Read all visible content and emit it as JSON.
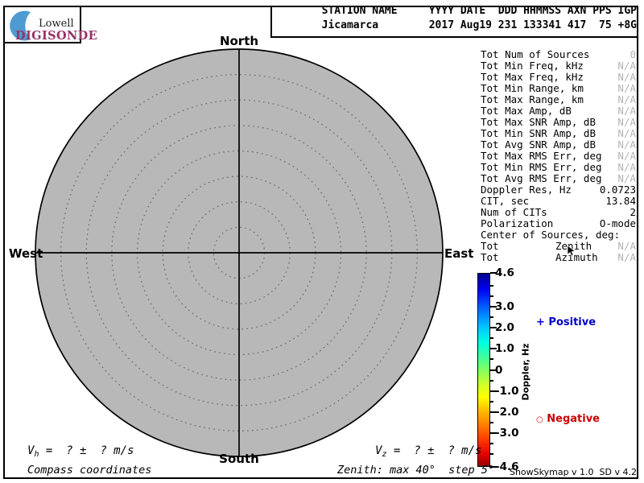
{
  "logo": {
    "top": "Lowell",
    "bottom": "DIGISONDE",
    "arc_color": "#4d9bd1",
    "brand_color": "#993366"
  },
  "header": {
    "line1": "STATION NAME     YYYY DATE  DDD HHMMSS AXN PPS IGP",
    "line2": "Jicamarca        2017 Aug19 231 133341 417  75 +8G",
    "station": {
      "name": "Jicamarca",
      "year": "2017",
      "date": "Aug19",
      "ddd": "231",
      "time": "133341",
      "axn": "417",
      "pps": "75",
      "igp": "+8G"
    }
  },
  "compass": {
    "north": "North",
    "south": "South",
    "east": "East",
    "west": "West",
    "max_zenith_deg": 40,
    "step_deg": 5,
    "fill_color": "#b8b8b8",
    "ring_color": "#6a6a6a"
  },
  "stats": {
    "rows": [
      {
        "label": "Tot Num of Sources",
        "value": "0",
        "dim": true
      },
      {
        "label": "Tot Min Freq, kHz",
        "value": "N/A",
        "dim": true
      },
      {
        "label": "Tot Max Freq, kHz",
        "value": "N/A",
        "dim": true
      },
      {
        "label": "Tot Min Range, km",
        "value": "N/A",
        "dim": true
      },
      {
        "label": "Tot Max Range, km",
        "value": "N/A",
        "dim": true
      },
      {
        "label": "Tot Max Amp, dB",
        "value": "N/A",
        "dim": true
      },
      {
        "label": "Tot Max SNR Amp, dB",
        "value": "N/A",
        "dim": true
      },
      {
        "label": "Tot Min SNR Amp, dB",
        "value": "N/A",
        "dim": true
      },
      {
        "label": "Tot Avg SNR Amp, dB",
        "value": "N/A",
        "dim": true
      },
      {
        "label": "Tot Max RMS Err, deg",
        "value": "N/A",
        "dim": true
      },
      {
        "label": "Tot Min RMS Err, deg",
        "value": "N/A",
        "dim": true
      },
      {
        "label": "Tot Avg RMS Err, deg",
        "value": "N/A",
        "dim": true
      },
      {
        "label": "Doppler Res, Hz",
        "value": "0.0723",
        "dim": false
      },
      {
        "label": "CIT, sec",
        "value": "13.84",
        "dim": false
      },
      {
        "label": "Num of CITs",
        "value": "2",
        "dim": false
      },
      {
        "label": "Polarization",
        "value": "O-mode",
        "dim": false
      },
      {
        "label": "Center of Sources, deg:",
        "value": "",
        "dim": false
      },
      {
        "label": "Tot",
        "mid": "Zenith",
        "value": "N/A",
        "dim": true
      },
      {
        "label": "Tot",
        "mid": "Azimuth",
        "value": "N/A",
        "dim": true
      }
    ],
    "na_color": "#b4b4b4"
  },
  "colorbar": {
    "title": "Doppler, Hz",
    "max": 4.6,
    "min": -4.6,
    "major_ticks": [
      {
        "v": 4.6,
        "label": "4.6"
      },
      {
        "v": 3.0,
        "label": "3.0"
      },
      {
        "v": 2.0,
        "label": "2.0"
      },
      {
        "v": 1.0,
        "label": "1.0"
      },
      {
        "v": 0,
        "label": "0"
      },
      {
        "v": -1.0,
        "label": "-1.0"
      },
      {
        "v": -2.0,
        "label": "-2.0"
      },
      {
        "v": -3.0,
        "label": "-3.0"
      },
      {
        "v": -4.6,
        "label": "-4.6"
      }
    ],
    "minor_ticks": [
      4.0,
      3.5,
      2.5,
      1.5,
      0.5,
      -0.5,
      -1.5,
      -2.5,
      -3.5,
      -4.0
    ],
    "gradient_stops": [
      "#00008f 0%",
      "#0000f0 8%",
      "#0064ff 18%",
      "#00c8ff 28%",
      "#00ffe0 36%",
      "#46ff96 44%",
      "#96ff50 52%",
      "#d2ff28 58%",
      "#ffff00 64%",
      "#ffc800 70%",
      "#ff8200 78%",
      "#ff3c00 86%",
      "#e10000 94%",
      "#960000 100%"
    ]
  },
  "legend": {
    "positive": {
      "marker": "+",
      "label": " Positive",
      "color": "#0000cc"
    },
    "negative": {
      "marker": "○",
      "label": " Negative",
      "color": "#cc0000"
    }
  },
  "footer": {
    "vh": {
      "sym": "V",
      "sub": "h",
      "rest": " =  ? ±  ? m/s"
    },
    "vz": {
      "sym": "V",
      "sub": "z",
      "rest": " =  ? ±  ? m/s"
    },
    "coords_label": "Compass coordinates",
    "zenith_label": "Zenith: max 40°  step 5°",
    "version": "ShowSkymap v 1.0  SD v 4.2"
  }
}
